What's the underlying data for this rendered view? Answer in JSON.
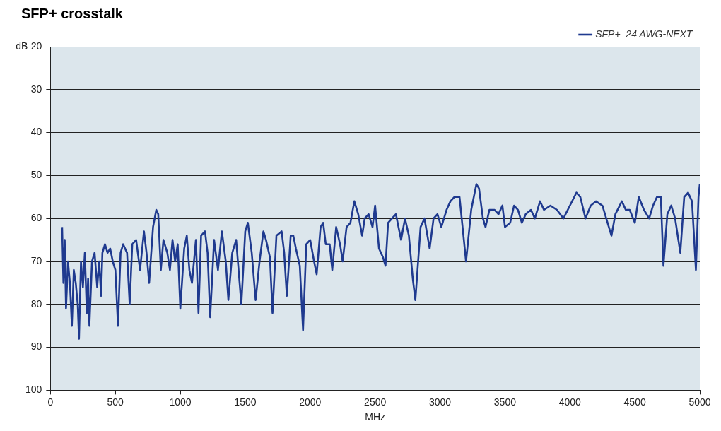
{
  "chart_data": {
    "type": "line",
    "title": "SFP+ crosstalk",
    "xlabel": "MHz",
    "ylabel": "dB",
    "legend": "top right",
    "grid": "y",
    "marker": "none",
    "line_style": "solid",
    "xlim": [
      0,
      5000
    ],
    "xticks": [
      0,
      500,
      1000,
      1500,
      2000,
      2500,
      3000,
      3500,
      4000,
      4500,
      5000
    ],
    "ylim": [
      100,
      20
    ],
    "yticks": [
      20,
      30,
      40,
      50,
      60,
      70,
      80,
      90,
      100
    ],
    "series": [
      {
        "name": "SFP+  24 AWG-NEXT",
        "color": "#1f3a8f",
        "x": [
          90,
          100,
          110,
          120,
          135,
          150,
          165,
          180,
          195,
          210,
          220,
          235,
          250,
          265,
          280,
          290,
          300,
          320,
          340,
          360,
          375,
          390,
          400,
          420,
          440,
          460,
          480,
          500,
          520,
          540,
          560,
          590,
          610,
          630,
          660,
          690,
          720,
          740,
          760,
          790,
          815,
          830,
          850,
          870,
          900,
          920,
          940,
          960,
          980,
          1000,
          1030,
          1050,
          1070,
          1090,
          1120,
          1140,
          1160,
          1190,
          1210,
          1230,
          1260,
          1290,
          1320,
          1350,
          1370,
          1400,
          1430,
          1470,
          1500,
          1520,
          1550,
          1580,
          1610,
          1640,
          1660,
          1690,
          1710,
          1740,
          1780,
          1800,
          1820,
          1850,
          1870,
          1890,
          1920,
          1945,
          1970,
          2000,
          2030,
          2050,
          2080,
          2100,
          2120,
          2150,
          2170,
          2200,
          2230,
          2250,
          2280,
          2310,
          2340,
          2370,
          2400,
          2420,
          2450,
          2480,
          2500,
          2530,
          2560,
          2580,
          2600,
          2630,
          2660,
          2700,
          2730,
          2760,
          2790,
          2810,
          2850,
          2880,
          2920,
          2950,
          2980,
          3010,
          3050,
          3080,
          3110,
          3150,
          3200,
          3240,
          3280,
          3300,
          3330,
          3350,
          3380,
          3420,
          3450,
          3480,
          3500,
          3540,
          3570,
          3600,
          3630,
          3660,
          3700,
          3730,
          3770,
          3800,
          3850,
          3900,
          3950,
          4000,
          4050,
          4080,
          4120,
          4160,
          4200,
          4250,
          4290,
          4320,
          4350,
          4400,
          4430,
          4460,
          4500,
          4530,
          4570,
          4610,
          4640,
          4670,
          4700,
          4720,
          4750,
          4780,
          4810,
          4850,
          4880,
          4910,
          4940,
          4970,
          4990,
          5000
        ],
        "values": [
          62,
          75,
          65,
          81,
          70,
          75,
          85,
          72,
          75,
          80,
          88,
          70,
          76,
          68,
          82,
          74,
          85,
          70,
          68,
          76,
          70,
          78,
          68,
          66,
          68,
          67,
          70,
          72,
          85,
          68,
          66,
          68,
          80,
          66,
          65,
          72,
          63,
          68,
          75,
          62,
          58,
          59,
          72,
          65,
          68,
          72,
          65,
          70,
          66,
          81,
          67,
          64,
          72,
          75,
          65,
          82,
          64,
          63,
          68,
          83,
          65,
          72,
          63,
          70,
          79,
          68,
          65,
          80,
          63,
          61,
          68,
          79,
          70,
          63,
          65,
          69,
          82,
          64,
          63,
          68,
          78,
          64,
          64,
          67,
          71,
          86,
          66,
          65,
          70,
          73,
          62,
          61,
          66,
          66,
          72,
          62,
          66,
          70,
          62,
          61,
          56,
          59,
          64,
          60,
          59,
          62,
          57,
          67,
          69,
          71,
          61,
          60,
          59,
          65,
          60,
          64,
          74,
          79,
          62,
          60,
          67,
          60,
          59,
          62,
          58,
          56,
          55,
          55,
          70,
          58,
          52,
          53,
          60,
          62,
          58,
          58,
          59,
          57,
          62,
          61,
          57,
          58,
          61,
          59,
          58,
          60,
          56,
          58,
          57,
          58,
          60,
          57,
          54,
          55,
          60,
          57,
          56,
          57,
          61,
          64,
          59,
          56,
          58,
          58,
          61,
          55,
          58,
          60,
          57,
          55,
          55,
          71,
          59,
          57,
          60,
          68,
          55,
          54,
          56,
          72,
          55,
          52
        ]
      }
    ]
  }
}
